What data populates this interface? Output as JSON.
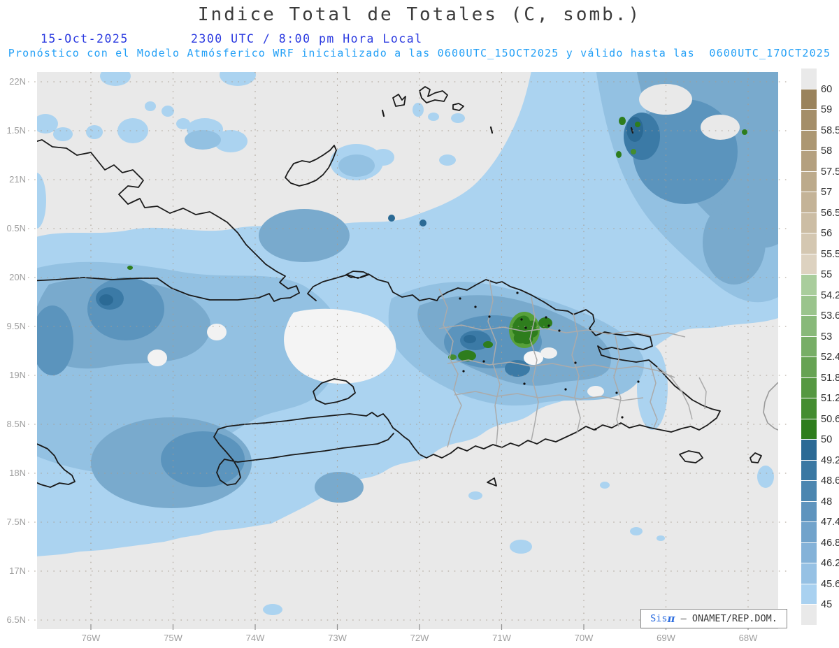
{
  "title": "Indice Total de Totales (C, somb.)",
  "header": {
    "date": "15-Oct-2025",
    "time": "2300 UTC / 8:00 pm Hora Local",
    "forecast": "Pronóstico con el Modelo Atmósferico WRF inicializado a las 0600UTC_15OCT2025 y válido hasta las  0600UTC_17OCT2025"
  },
  "axes": {
    "y_labels": [
      "22N",
      "1.5N",
      "21N",
      "0.5N",
      "20N",
      "9.5N",
      "19N",
      "8.5N",
      "18N",
      "7.5N",
      "17N",
      "6.5N"
    ],
    "x_labels": [
      "76W",
      "75W",
      "74W",
      "73W",
      "72W",
      "71W",
      "70W",
      "69W",
      "68W"
    ]
  },
  "colorbar": {
    "tick_labels": [
      "60",
      "59",
      "58.5",
      "58",
      "57.5",
      "57",
      "56.5",
      "56",
      "55.5",
      "55",
      "54.2",
      "53.6",
      "53",
      "52.4",
      "51.8",
      "51.2",
      "50.6",
      "50",
      "49.2",
      "48.6",
      "48",
      "47.4",
      "46.8",
      "46.2",
      "45.6",
      "45"
    ],
    "segment_colors": [
      "#e9e9e9",
      "#9a835c",
      "#a48e69",
      "#ac9772",
      "#b4a07f",
      "#bcaa8b",
      "#c4b397",
      "#ccbda4",
      "#d4c7b1",
      "#ddd2c0",
      "#a9cd9c",
      "#9ac48c",
      "#88b979",
      "#77ae66",
      "#66a353",
      "#559841",
      "#448d30",
      "#2e7d1d",
      "#2b6a95",
      "#3a78a3",
      "#4b86b0",
      "#5e94be",
      "#71a3cb",
      "#84b2d8",
      "#96c1e4",
      "#a9d1f0",
      "#e9e9e9"
    ]
  },
  "watermark": {
    "brand": "Sis",
    "pi": "π",
    "separator": " — ",
    "agency": "ONAMET/REP.DOM."
  },
  "chart_data": {
    "type": "heatmap",
    "title": "Indice Total de Totales (C, somb.)",
    "variable": "Total Totals Index, shaded (C)",
    "model_run": "0600UTC_15OCT2025",
    "valid_until": "0600UTC_17OCT2025",
    "valid_time": "2300 UTC / 8:00 pm Hora Local, 15-Oct-2025",
    "x_domain": [
      "76W",
      "68W"
    ],
    "y_domain": [
      "16.5N",
      "22N"
    ],
    "legend_position": "right",
    "scale_range": [
      45,
      60
    ],
    "scale_ticks": [
      60,
      59,
      58.5,
      58,
      57.5,
      57,
      56.5,
      56,
      55.5,
      55,
      54.2,
      53.6,
      53,
      52.4,
      51.8,
      51.2,
      50.6,
      50,
      49.2,
      48.6,
      48,
      47.4,
      46.8,
      46.2,
      45.6,
      45
    ],
    "notes": "Shaded contour forecast map over Cuba, Jamaica, Hispaniola, Turks & Caicos and Puerto Rico; blue shading 45-50, green 50-55, tan 55-60; maxima (green, >50) over central Dominican Republic and northeast offshore areas"
  }
}
